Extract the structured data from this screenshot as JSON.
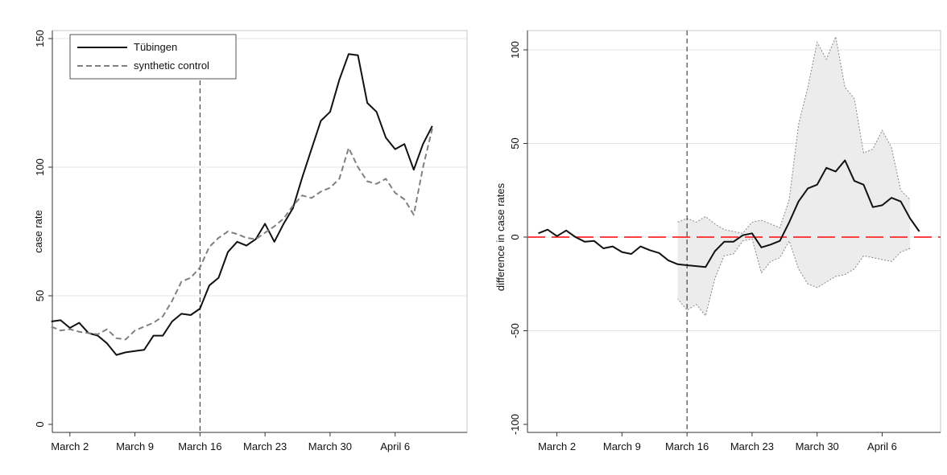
{
  "chart_data": [
    {
      "type": "line",
      "ylabel": "case rate",
      "xlabel": "",
      "ylim": [
        0,
        150
      ],
      "yticks": [
        "0",
        "50",
        "100",
        "150"
      ],
      "xticks": [
        "March 2",
        "March 9",
        "March 16",
        "March 23",
        "March 30",
        "April 6"
      ],
      "x_start": "Feb 29",
      "grid": "horizontal",
      "legend_position": "top-left",
      "intervention": "March 16",
      "series": [
        {
          "name": "Tübingen",
          "style": "solid",
          "color": "#111111",
          "values": [
            40,
            40.5,
            37.5,
            39.5,
            35.5,
            34.5,
            31.5,
            27,
            28,
            28.5,
            29,
            34.5,
            34.5,
            40,
            43,
            42.5,
            45,
            54,
            57,
            67,
            71,
            69.5,
            72,
            78,
            71,
            78,
            84,
            96,
            107,
            118,
            121.5,
            134,
            144,
            143.5,
            125,
            121.5,
            111.5,
            107,
            109,
            99,
            109,
            116
          ]
        },
        {
          "name": "synthetic control",
          "style": "dashed",
          "color": "#808080",
          "values": [
            38,
            36.5,
            37,
            36,
            35.5,
            35,
            37,
            33.5,
            33,
            36.5,
            38,
            39.5,
            42,
            48,
            55.5,
            57,
            61,
            69,
            72.5,
            75,
            74,
            72.5,
            72,
            74.5,
            77,
            80,
            85,
            89,
            88,
            90.5,
            92,
            95.5,
            107.5,
            100,
            94.5,
            93.5,
            95.5,
            90,
            87.5,
            81.5,
            100,
            115
          ]
        }
      ]
    },
    {
      "type": "line",
      "ylabel": "difference in case rates",
      "xlabel": "",
      "ylim": [
        -100,
        100
      ],
      "yticks": [
        "-100",
        "-50",
        "0",
        "50",
        "100"
      ],
      "xticks": [
        "March 2",
        "March 9",
        "March 16",
        "March 23",
        "March 30",
        "April 6"
      ],
      "x_start": "Feb 29",
      "grid": "horizontal",
      "intervention": "March 16",
      "reference_line": {
        "value": 0,
        "style": "long-dash",
        "color": "#ff4040"
      },
      "series": [
        {
          "name": "",
          "style": "solid",
          "color": "#111111",
          "values": [
            2,
            4,
            0.5,
            3.5,
            0,
            -2.5,
            -2,
            -6,
            -5,
            -8,
            -9,
            -5,
            -7,
            -8.5,
            -12.5,
            -14.5,
            -15,
            -15.5,
            -16,
            -7.5,
            -2.5,
            -2.5,
            1,
            2,
            -5.5,
            -4,
            -2,
            8,
            19,
            26,
            28,
            37,
            35,
            41,
            30,
            28,
            16,
            17,
            21,
            19,
            10,
            3
          ]
        }
      ],
      "band": {
        "start_index": 15,
        "fill": "#ececec",
        "stroke": "#888888",
        "upper": [
          8,
          10,
          8,
          11,
          7,
          4,
          3,
          2,
          8,
          9,
          7,
          5,
          20,
          60,
          80,
          104,
          95,
          107,
          80,
          74,
          45,
          47,
          57,
          48,
          25,
          20
        ],
        "lower": [
          -33,
          -39,
          -36,
          -42,
          -22,
          -10,
          -9,
          -2,
          -1,
          -19,
          -13,
          -11,
          -2,
          -17,
          -25,
          -27,
          -24,
          -21,
          -20,
          -17,
          -10,
          -11,
          -12,
          -13,
          -8,
          -6
        ]
      }
    }
  ]
}
